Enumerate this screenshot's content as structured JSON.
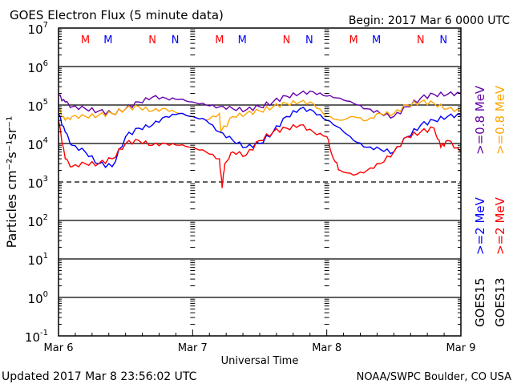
{
  "chart_data": {
    "type": "line",
    "title": "GOES Electron Flux (5 minute data)",
    "begin": "Begin: 2017 Mar 6 0000 UTC",
    "xlabel": "Universal Time",
    "ylabel": "Particles cm⁻²s⁻¹sr⁻¹",
    "x_ticks": [
      "Mar 6",
      "Mar 7",
      "Mar 8",
      "Mar 9"
    ],
    "xlim_days": [
      0,
      3
    ],
    "y_scale": "log",
    "ylim": [
      0.1,
      10000000
    ],
    "y_ticks": [
      {
        "base": "10",
        "exp": "7"
      },
      {
        "base": "10",
        "exp": "6"
      },
      {
        "base": "10",
        "exp": "5"
      },
      {
        "base": "10",
        "exp": "4"
      },
      {
        "base": "10",
        "exp": "3"
      },
      {
        "base": "10",
        "exp": "2"
      },
      {
        "base": "10",
        "exp": "1"
      },
      {
        "base": "10",
        "exp": "0"
      },
      {
        "base": "10",
        "exp": "-1"
      }
    ],
    "threshold": 1000,
    "markers": [
      {
        "label": "M",
        "color": "#ff0000",
        "day": 0.2
      },
      {
        "label": "M",
        "color": "#0000ff",
        "day": 0.37
      },
      {
        "label": "N",
        "color": "#ff0000",
        "day": 0.7
      },
      {
        "label": "N",
        "color": "#0000ff",
        "day": 0.87
      },
      {
        "label": "M",
        "color": "#ff0000",
        "day": 1.2
      },
      {
        "label": "M",
        "color": "#0000ff",
        "day": 1.37
      },
      {
        "label": "N",
        "color": "#ff0000",
        "day": 1.7
      },
      {
        "label": "N",
        "color": "#0000ff",
        "day": 1.87
      },
      {
        "label": "M",
        "color": "#ff0000",
        "day": 2.2
      },
      {
        "label": "M",
        "color": "#0000ff",
        "day": 2.37
      },
      {
        "label": "N",
        "color": "#ff0000",
        "day": 2.7
      },
      {
        "label": "N",
        "color": "#0000ff",
        "day": 2.87
      }
    ],
    "series": [
      {
        "name": ">=0.8 MeV",
        "satellite": "GOES15",
        "color": "#6600aa",
        "x": [
          0,
          0.05,
          0.1,
          0.2,
          0.3,
          0.4,
          0.5,
          0.6,
          0.7,
          0.8,
          0.9,
          1.0,
          1.1,
          1.2,
          1.3,
          1.4,
          1.5,
          1.6,
          1.7,
          1.8,
          1.9,
          2.0,
          2.1,
          2.2,
          2.3,
          2.4,
          2.5,
          2.6,
          2.7,
          2.8,
          2.9,
          3.0
        ],
        "y": [
          180000,
          120000,
          90000,
          80000,
          70000,
          60000,
          80000,
          120000,
          160000,
          150000,
          140000,
          120000,
          100000,
          90000,
          80000,
          75000,
          90000,
          120000,
          170000,
          200000,
          220000,
          170000,
          150000,
          110000,
          80000,
          60000,
          50000,
          90000,
          150000,
          190000,
          190000,
          200000
        ]
      },
      {
        "name": ">=0.8 MeV",
        "satellite": "GOES13",
        "color": "#ffa500",
        "x": [
          0,
          0.05,
          0.1,
          0.2,
          0.3,
          0.4,
          0.5,
          0.6,
          0.7,
          0.8,
          0.9,
          1.0,
          1.1,
          1.2,
          1.21,
          1.3,
          1.4,
          1.5,
          1.6,
          1.7,
          1.8,
          1.9,
          2.0,
          2.1,
          2.2,
          2.3,
          2.4,
          2.5,
          2.6,
          2.7,
          2.8,
          2.9,
          3.0
        ],
        "y": [
          80000,
          40000,
          50000,
          50000,
          55000,
          60000,
          80000,
          90000,
          70000,
          80000,
          60000,
          50000,
          40000,
          60000,
          20000,
          50000,
          60000,
          70000,
          90000,
          110000,
          120000,
          110000,
          50000,
          40000,
          50000,
          40000,
          60000,
          60000,
          100000,
          120000,
          110000,
          80000,
          70000
        ]
      },
      {
        "name": ">=2 MeV",
        "satellite": "GOES15",
        "color": "#0000ff",
        "x": [
          0,
          0.05,
          0.1,
          0.2,
          0.3,
          0.4,
          0.5,
          0.6,
          0.7,
          0.8,
          0.9,
          1.0,
          1.1,
          1.2,
          1.3,
          1.4,
          1.5,
          1.6,
          1.7,
          1.8,
          1.9,
          2.0,
          2.1,
          2.2,
          2.3,
          2.4,
          2.5,
          2.6,
          2.7,
          2.8,
          2.9,
          3.0
        ],
        "y": [
          60000,
          20000,
          9000,
          6000,
          3000,
          2500,
          15000,
          25000,
          30000,
          50000,
          60000,
          50000,
          40000,
          20000,
          12000,
          8000,
          10000,
          20000,
          50000,
          80000,
          70000,
          40000,
          25000,
          12000,
          8000,
          7000,
          6000,
          15000,
          30000,
          40000,
          50000,
          55000
        ]
      },
      {
        "name": ">=2 MeV",
        "satellite": "GOES13",
        "color": "#ff0000",
        "x": [
          0,
          0.05,
          0.1,
          0.2,
          0.3,
          0.4,
          0.5,
          0.6,
          0.7,
          0.8,
          0.9,
          1.0,
          1.1,
          1.2,
          1.22,
          1.24,
          1.3,
          1.4,
          1.5,
          1.6,
          1.7,
          1.8,
          1.9,
          2.0,
          2.05,
          2.1,
          2.2,
          2.3,
          2.4,
          2.5,
          2.6,
          2.7,
          2.8,
          2.85,
          2.9,
          3.0
        ],
        "y": [
          40000,
          4000,
          2500,
          3000,
          3000,
          4000,
          10000,
          12000,
          9000,
          10000,
          9000,
          8000,
          6000,
          4000,
          700,
          3000,
          6000,
          5000,
          12000,
          20000,
          25000,
          30000,
          20000,
          15000,
          4000,
          2000,
          1500,
          2000,
          3000,
          6000,
          15000,
          20000,
          25000,
          8000,
          12000,
          6000
        ]
      }
    ],
    "legend": {
      "goes15": "GOES15",
      "goes13": "GOES13"
    }
  },
  "footer": {
    "updated": "Updated 2017 Mar  8 23:56:02 UTC",
    "credit": "NOAA/SWPC Boulder, CO USA"
  }
}
